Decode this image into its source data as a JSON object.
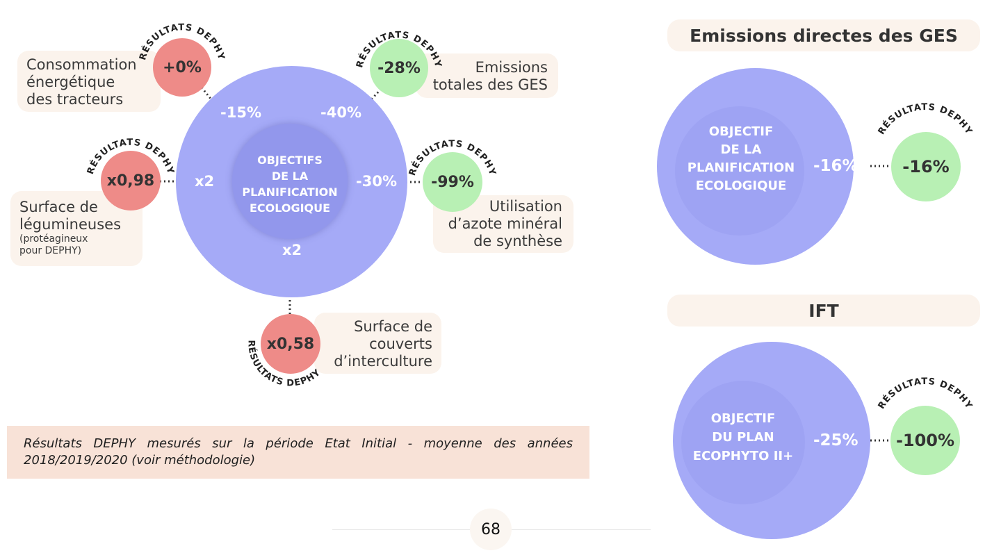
{
  "arc_label": "RÉSULTATS DEPHY",
  "left_diagram": {
    "center": {
      "l1": "OBJECTIFS",
      "l2": "DE LA",
      "l3": "PLANIFICATION",
      "l4": "ECOLOGIQUE"
    },
    "targets": {
      "tracteurs": "-15%",
      "ges": "-40%",
      "azote": "-30%",
      "legumineuses": "x2",
      "interculture": "x2"
    },
    "items": {
      "tracteurs": {
        "result": "+0%",
        "status": "red",
        "l1": "Consommation",
        "l2": "énergétique",
        "l3": "des tracteurs"
      },
      "ges": {
        "result": "-28%",
        "status": "green",
        "l1": "Emissions",
        "l2": "totales des GES"
      },
      "azote": {
        "result": "-99%",
        "status": "green",
        "l1": "Utilisation",
        "l2": "d’azote minéral",
        "l3": "de synthèse"
      },
      "legumineuses": {
        "result": "x0,98",
        "status": "red",
        "l1": "Surface de",
        "l2": "légumineuses",
        "s1": "(protéagineux",
        "s2": "pour DEPHY)"
      },
      "interculture": {
        "result": "x0,58",
        "status": "red",
        "l1": "Surface de",
        "l2": "couverts",
        "l3": "d’interculture"
      }
    }
  },
  "note": "Résultats DEPHY mesurés sur la période Etat Initial - moyenne des années 2018/2019/2020 (voir méthodologie)",
  "page_number": "68",
  "panels": {
    "ges": {
      "title": "Emissions directes des GES",
      "c1": "OBJECTIF",
      "c2": "DE LA",
      "c3": "PLANIFICATION",
      "c4": "ECOLOGIQUE",
      "target": "-16%",
      "result": "-16%"
    },
    "ift": {
      "title": "IFT",
      "c1": "OBJECTIF",
      "c2": "DU PLAN",
      "c3": "ECOPHYTO II+",
      "target": "-25%",
      "result": "-100%"
    }
  },
  "colors": {
    "red": "#ee8b88",
    "green": "#b8f0b4",
    "blue": "#a5aaf7",
    "cream": "#fbf3ec",
    "note_bg": "#f8e2d7"
  }
}
